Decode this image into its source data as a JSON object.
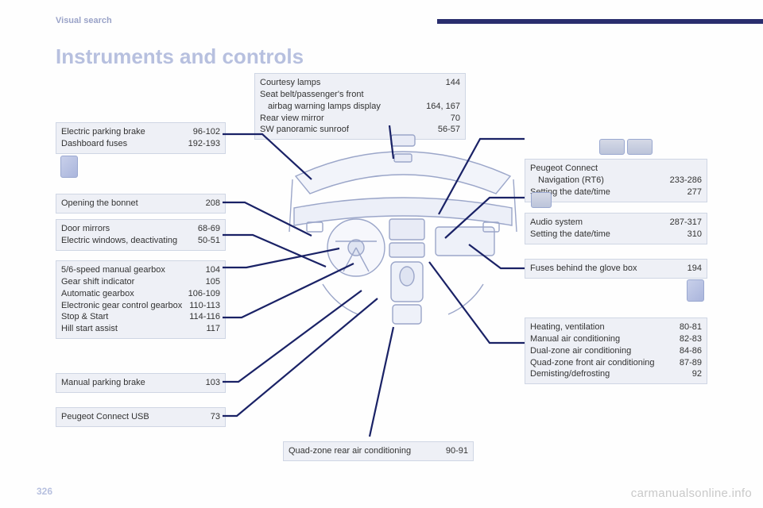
{
  "header": {
    "section_label": "Visual search",
    "title": "Instruments and controls"
  },
  "boxes": {
    "b1": [
      {
        "l": "Electric parking brake",
        "r": "96-102"
      },
      {
        "l": "Dashboard fuses",
        "r": "192-193"
      }
    ],
    "b2": [
      {
        "l": "Opening the bonnet",
        "r": "208"
      }
    ],
    "b3": [
      {
        "l": "Door mirrors",
        "r": "68-69"
      },
      {
        "l": "Electric windows, deactivating",
        "r": "50-51"
      }
    ],
    "b4": [
      {
        "l": "5/6-speed manual gearbox",
        "r": "104"
      },
      {
        "l": "Gear shift indicator",
        "r": "105"
      },
      {
        "l": "Automatic gearbox",
        "r": "106-109"
      },
      {
        "l": "Electronic gear control gearbox",
        "r": "110-113"
      },
      {
        "l": "Stop & Start",
        "r": "114-116"
      },
      {
        "l": "Hill start assist",
        "r": "117"
      }
    ],
    "b5": [
      {
        "l": "Manual parking brake",
        "r": "103"
      }
    ],
    "b6": [
      {
        "l": "Peugeot Connect USB",
        "r": "73"
      }
    ],
    "b7": [
      {
        "l": "Courtesy lamps",
        "r": "144"
      },
      {
        "l": "Seat belt/passenger's front   airbag warning lamps display",
        "r": "164, 167"
      },
      {
        "l": "Rear view mirror",
        "r": "70"
      },
      {
        "l": "SW panoramic sunroof",
        "r": "56-57"
      }
    ],
    "b8": [
      {
        "l": "Peugeot Connect   Navigation (RT6)",
        "r": "233-286"
      },
      {
        "l": "Setting the date/time",
        "r": "277"
      }
    ],
    "b9": [
      {
        "l": "Audio system",
        "r": "287-317"
      },
      {
        "l": "Setting the date/time",
        "r": "310"
      }
    ],
    "b10": [
      {
        "l": "Fuses behind the glove box",
        "r": "194"
      }
    ],
    "b11": [
      {
        "l": "Heating, ventilation",
        "r": "80-81"
      },
      {
        "l": "Manual air conditioning",
        "r": "82-83"
      },
      {
        "l": "Dual-zone air conditioning",
        "r": "84-86"
      },
      {
        "l": "Quad-zone front air conditioning",
        "r": "87-89"
      },
      {
        "l": "Demisting/defrosting",
        "r": "92"
      }
    ],
    "b12": [
      {
        "l": "Quad-zone rear air conditioning",
        "r": "90-91"
      }
    ]
  },
  "footer": {
    "page_number": "326",
    "watermark": "carmanualsonline.info"
  },
  "callouts": {
    "stroke": "#1a2266",
    "width": 2.2,
    "paths": [
      "M280,169 L330,169 L392,226",
      "M280,255 L308,255 L392,297",
      "M280,296 L318,296 L410,336",
      "M280,337 L310,337 L427,313",
      "M280,400 L304,400 L445,332",
      "M280,481 L300,481 L455,366",
      "M280,524 L298,524 L475,376",
      "M490,158 L495,200",
      "M660,175 L604,175 L552,270",
      "M660,249 L616,249 L560,300",
      "M660,338 L630,338 L590,308",
      "M660,432 L616,432 L540,330",
      "M465,550 L495,412"
    ]
  }
}
